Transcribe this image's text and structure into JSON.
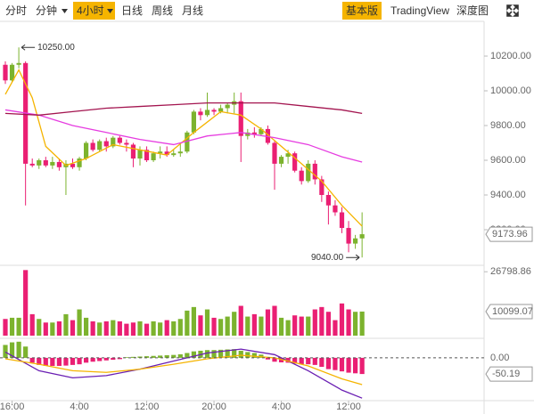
{
  "toolbar": {
    "left": [
      "分时",
      "分钟",
      "4小时",
      "日线",
      "周线",
      "月线"
    ],
    "right": [
      "基本版",
      "TradingView",
      "深度图"
    ]
  },
  "chart_data": {
    "type": "candlestick",
    "categories": [
      null,
      "16:00",
      null,
      null,
      null,
      null,
      null,
      null,
      null,
      null,
      null,
      "4:00",
      null,
      null,
      null,
      null,
      null,
      null,
      null,
      null,
      null,
      "12:00",
      null,
      null,
      null,
      null,
      null,
      null,
      null,
      null,
      null,
      "20:00",
      null,
      null,
      null,
      null,
      null,
      null,
      null,
      null,
      null,
      "4:00",
      null,
      null,
      null,
      null,
      null,
      null,
      null,
      null,
      null,
      "12:00",
      null,
      null
    ],
    "open": [
      10150,
      10060,
      10150,
      10160,
      9580,
      9570,
      9600,
      9570,
      9590,
      9560,
      9580,
      9560,
      9610,
      9700,
      9660,
      9710,
      9680,
      9730,
      9700,
      9690,
      9610,
      9660,
      9600,
      9640,
      9650,
      9630,
      9640,
      9650,
      9760,
      9880,
      9860,
      9890,
      9880,
      9900,
      9920,
      9940,
      9740,
      9760,
      9750,
      9780,
      9700,
      9580,
      9620,
      9640,
      9540,
      9480,
      9580,
      9490,
      9400,
      9340,
      9300,
      9210,
      9120,
      9150
    ],
    "high": [
      10170,
      10160,
      10250,
      10170,
      9610,
      9610,
      9620,
      9620,
      9610,
      9600,
      9610,
      9620,
      9710,
      9720,
      9720,
      9730,
      9740,
      9740,
      9720,
      9700,
      9680,
      9680,
      9650,
      9680,
      9680,
      9660,
      9700,
      9770,
      9890,
      9900,
      9990,
      9900,
      9920,
      9930,
      9990,
      9990,
      9780,
      9790,
      9790,
      9800,
      9710,
      9630,
      9660,
      9650,
      9560,
      9600,
      9600,
      9510,
      9420,
      9370,
      9330,
      9250,
      9170,
      9300
    ],
    "low": [
      10040,
      10050,
      10130,
      9340,
      9560,
      9550,
      9560,
      9550,
      9540,
      9400,
      9550,
      9540,
      9600,
      9650,
      9650,
      9650,
      9670,
      9690,
      9650,
      9560,
      9570,
      9590,
      9590,
      9610,
      9620,
      9620,
      9620,
      9640,
      9750,
      9830,
      9850,
      9860,
      9870,
      9870,
      9870,
      9590,
      9720,
      9730,
      9740,
      9690,
      9430,
      9560,
      9580,
      9530,
      9460,
      9470,
      9460,
      9360,
      9230,
      9280,
      9180,
      9070,
      9090,
      9040
    ],
    "close": [
      10060,
      10150,
      10160,
      9580,
      9570,
      9600,
      9570,
      9590,
      9560,
      9580,
      9560,
      9610,
      9700,
      9660,
      9710,
      9680,
      9730,
      9700,
      9690,
      9610,
      9660,
      9600,
      9640,
      9650,
      9630,
      9640,
      9650,
      9760,
      9880,
      9860,
      9890,
      9880,
      9900,
      9920,
      9940,
      9740,
      9760,
      9750,
      9780,
      9700,
      9580,
      9620,
      9640,
      9540,
      9480,
      9580,
      9490,
      9400,
      9340,
      9300,
      9210,
      9120,
      9150,
      9173.96
    ],
    "up_color": "#7cb32e",
    "down_color": "#ea1f73",
    "ylim": [
      9000,
      10400
    ],
    "yticks": [
      {
        "value": 9200,
        "label": "9200.00"
      },
      {
        "value": 9400,
        "label": "9400.00"
      },
      {
        "value": 9600,
        "label": "9600.00"
      },
      {
        "value": 9800,
        "label": "9800.00"
      },
      {
        "value": 10000,
        "label": "10000.00"
      },
      {
        "value": 10200,
        "label": "10200.00"
      }
    ],
    "annotations": [
      {
        "x": 2,
        "value": 10250,
        "label": "10250.00"
      },
      {
        "x": 53,
        "value": 9040,
        "label": "9040.00"
      }
    ],
    "series": [
      {
        "color": "#f5b400",
        "x": [
          0,
          2,
          4,
          6,
          9,
          12,
          16,
          20,
          24,
          28,
          32,
          35,
          38,
          41,
          44,
          47,
          50,
          53
        ],
        "values": [
          9980,
          10120,
          9960,
          9680,
          9570,
          9610,
          9690,
          9660,
          9630,
          9760,
          9880,
          9860,
          9780,
          9680,
          9580,
          9480,
          9340,
          9220
        ]
      },
      {
        "color": "#e63ce0",
        "x": [
          0,
          5,
          10,
          15,
          20,
          25,
          30,
          35,
          40,
          45,
          50,
          53
        ],
        "values": [
          9890,
          9860,
          9800,
          9760,
          9720,
          9690,
          9740,
          9760,
          9730,
          9690,
          9620,
          9590
        ]
      },
      {
        "color": "#a3144f",
        "x": [
          0,
          5,
          10,
          15,
          20,
          25,
          30,
          35,
          40,
          45,
          50,
          53
        ],
        "values": [
          9870,
          9860,
          9880,
          9900,
          9910,
          9920,
          9930,
          9930,
          9930,
          9910,
          9890,
          9870
        ]
      }
    ],
    "volume": {
      "values": [
        7000,
        7500,
        7500,
        27500,
        9000,
        7000,
        5500,
        5500,
        6000,
        9000,
        6500,
        11000,
        7500,
        6000,
        5500,
        6000,
        6500,
        6000,
        5000,
        5500,
        6000,
        5000,
        6000,
        5500,
        6500,
        6000,
        7000,
        10500,
        12000,
        8500,
        11000,
        7500,
        7000,
        8000,
        10000,
        12500,
        8000,
        9000,
        8000,
        11000,
        12500,
        7500,
        6500,
        8500,
        8000,
        8000,
        11000,
        12000,
        10000,
        6500,
        13500,
        11000,
        10000,
        10099.07
      ],
      "ylim": [
        0,
        28000
      ],
      "yticks": [
        26798.86
      ]
    },
    "macd": {
      "histogram": [
        40,
        48,
        50,
        35,
        -15,
        -22,
        -25,
        -25,
        -25,
        -24,
        -22,
        -20,
        -15,
        -12,
        -10,
        -8,
        -6,
        -4,
        2,
        3,
        4,
        5,
        6,
        7,
        8,
        9,
        11,
        15,
        20,
        22,
        24,
        24,
        25,
        26,
        27,
        22,
        18,
        15,
        10,
        -5,
        -12,
        -14,
        -15,
        -18,
        -20,
        -20,
        -22,
        -28,
        -35,
        -38,
        -42,
        -46,
        -48,
        -50.19
      ],
      "ylim": [
        -130,
        55
      ],
      "yticks": [
        {
          "value": 0,
          "label": "0.00"
        }
      ],
      "series": [
        {
          "color": "#6a1fb3",
          "x": [
            0,
            5,
            10,
            15,
            20,
            25,
            30,
            35,
            40,
            45,
            50,
            53
          ],
          "values": [
            18,
            -40,
            -62,
            -55,
            -35,
            -10,
            15,
            27,
            10,
            -40,
            -100,
            -125
          ]
        },
        {
          "color": "#f5b400",
          "x": [
            0,
            5,
            10,
            15,
            20,
            25,
            30,
            35,
            40,
            45,
            50,
            53
          ],
          "values": [
            -3,
            -20,
            -40,
            -45,
            -35,
            -20,
            -3,
            8,
            0,
            -25,
            -65,
            -83
          ]
        }
      ]
    }
  }
}
